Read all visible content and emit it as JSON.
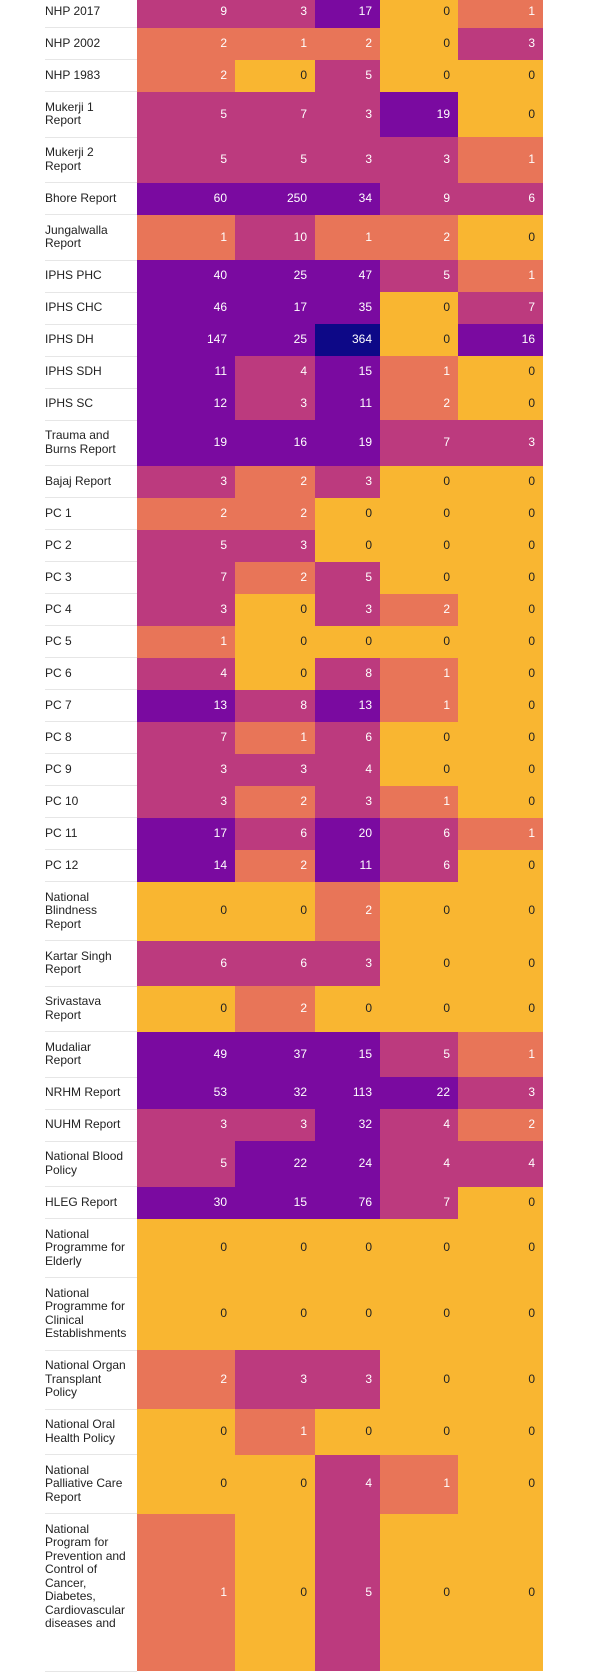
{
  "chart_data": {
    "type": "heatmap",
    "color_scale": {
      "0": "#F9B631",
      "1-2": "#E87558",
      "3-10": "#BC3A7E",
      "11-300": "#7A0AA0",
      ">300": "#0D0887"
    },
    "rows": [
      {
        "label": "NHP 2017",
        "values": [
          9,
          3,
          17,
          0,
          1
        ]
      },
      {
        "label": "NHP 2002",
        "values": [
          2,
          1,
          2,
          0,
          3
        ]
      },
      {
        "label": "NHP 1983",
        "values": [
          2,
          0,
          5,
          0,
          0
        ]
      },
      {
        "label": "Mukerji 1\nReport",
        "values": [
          5,
          7,
          3,
          19,
          0
        ]
      },
      {
        "label": "Mukerji 2\nReport",
        "values": [
          5,
          5,
          3,
          3,
          1
        ]
      },
      {
        "label": "Bhore Report",
        "values": [
          60,
          250,
          34,
          9,
          6
        ]
      },
      {
        "label": "Jungalwalla\nReport",
        "values": [
          1,
          10,
          1,
          2,
          0
        ]
      },
      {
        "label": "IPHS PHC",
        "values": [
          40,
          25,
          47,
          5,
          1
        ]
      },
      {
        "label": "IPHS CHC",
        "values": [
          46,
          17,
          35,
          0,
          7
        ]
      },
      {
        "label": "IPHS DH",
        "values": [
          147,
          25,
          364,
          0,
          16
        ]
      },
      {
        "label": "IPHS SDH",
        "values": [
          11,
          4,
          15,
          1,
          0
        ]
      },
      {
        "label": "IPHS SC",
        "values": [
          12,
          3,
          11,
          2,
          0
        ]
      },
      {
        "label": "Trauma and\nBurns Report",
        "values": [
          19,
          16,
          19,
          7,
          3
        ]
      },
      {
        "label": "Bajaj Report",
        "values": [
          3,
          2,
          3,
          0,
          0
        ]
      },
      {
        "label": "PC 1",
        "values": [
          2,
          2,
          0,
          0,
          0
        ]
      },
      {
        "label": "PC 2",
        "values": [
          5,
          3,
          0,
          0,
          0
        ]
      },
      {
        "label": "PC 3",
        "values": [
          7,
          2,
          5,
          0,
          0
        ]
      },
      {
        "label": "PC 4",
        "values": [
          3,
          0,
          3,
          2,
          0
        ]
      },
      {
        "label": "PC 5",
        "values": [
          1,
          0,
          0,
          0,
          0
        ]
      },
      {
        "label": "PC 6",
        "values": [
          4,
          0,
          8,
          1,
          0
        ]
      },
      {
        "label": "PC 7",
        "values": [
          13,
          8,
          13,
          1,
          0
        ]
      },
      {
        "label": "PC 8",
        "values": [
          7,
          1,
          6,
          0,
          0
        ]
      },
      {
        "label": "PC 9",
        "values": [
          3,
          3,
          4,
          0,
          0
        ]
      },
      {
        "label": "PC 10",
        "values": [
          3,
          2,
          3,
          1,
          0
        ]
      },
      {
        "label": "PC 11",
        "values": [
          17,
          6,
          20,
          6,
          1
        ]
      },
      {
        "label": "PC 12",
        "values": [
          14,
          2,
          11,
          6,
          0
        ]
      },
      {
        "label": "National\nBlindness\nReport",
        "values": [
          0,
          0,
          2,
          0,
          0
        ]
      },
      {
        "label": "Kartar Singh\nReport",
        "values": [
          6,
          6,
          3,
          0,
          0
        ]
      },
      {
        "label": "Srivastava\nReport",
        "values": [
          0,
          2,
          0,
          0,
          0
        ]
      },
      {
        "label": "Mudaliar\nReport",
        "values": [
          49,
          37,
          15,
          5,
          1
        ]
      },
      {
        "label": "NRHM Report",
        "values": [
          53,
          32,
          113,
          22,
          3
        ]
      },
      {
        "label": "NUHM Report",
        "values": [
          3,
          3,
          32,
          4,
          2
        ]
      },
      {
        "label": "National Blood\nPolicy",
        "values": [
          5,
          22,
          24,
          4,
          4
        ]
      },
      {
        "label": "HLEG Report",
        "values": [
          30,
          15,
          76,
          7,
          0
        ]
      },
      {
        "label": "National\nProgramme for\nElderly",
        "values": [
          0,
          0,
          0,
          0,
          0
        ]
      },
      {
        "label": "National\nProgramme for\nClinical\nEstablishments",
        "values": [
          0,
          0,
          0,
          0,
          0
        ]
      },
      {
        "label": "National Organ\nTransplant\nPolicy",
        "values": [
          2,
          3,
          3,
          0,
          0
        ]
      },
      {
        "label": "National Oral\nHealth Policy",
        "values": [
          0,
          1,
          0,
          0,
          0
        ]
      },
      {
        "label": "National\nPalliative Care\nReport",
        "values": [
          0,
          0,
          4,
          1,
          0
        ]
      },
      {
        "label": "National\nProgram for\nPrevention and\nControl of\nCancer,\nDiabetes,\nCardiovascular\ndiseases and",
        "values": [
          1,
          0,
          5,
          0,
          0
        ]
      }
    ]
  }
}
